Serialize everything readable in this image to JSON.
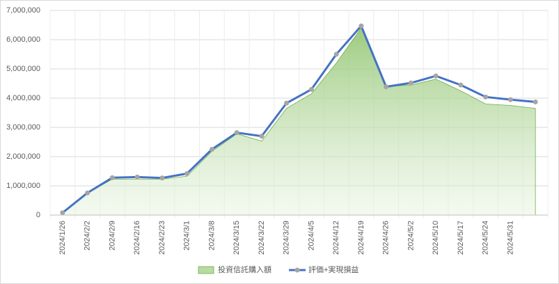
{
  "chart_data": {
    "type": "combo",
    "categories": [
      "2024/1/26",
      "2024/2/2",
      "2024/2/9",
      "2024/2/16",
      "2024/2/23",
      "2024/3/1",
      "2024/3/8",
      "2024/3/15",
      "2024/3/22",
      "2024/3/29",
      "2024/4/5",
      "2024/4/12",
      "2024/4/19",
      "2024/4/26",
      "2024/5/2",
      "2024/5/10",
      "2024/5/17",
      "2024/5/24",
      "2024/5/31",
      null
    ],
    "series": [
      {
        "name": "投資信託購入額",
        "type": "area",
        "color": "#70ad47",
        "values": [
          80000,
          750000,
          1230000,
          1230000,
          1230000,
          1330000,
          2180000,
          2780000,
          2530000,
          3650000,
          4150000,
          5200000,
          6400000,
          4400000,
          4450000,
          4650000,
          4250000,
          3800000,
          3750000,
          3650000
        ]
      },
      {
        "name": "評価+実現損益",
        "type": "line",
        "color": "#4472c4",
        "marker_color": "#a5a5a5",
        "values": [
          80000,
          760000,
          1280000,
          1300000,
          1270000,
          1420000,
          2250000,
          2820000,
          2700000,
          3830000,
          4300000,
          5500000,
          6470000,
          4390000,
          4520000,
          4760000,
          4450000,
          4040000,
          3950000,
          3870000
        ]
      }
    ],
    "ylim": [
      0,
      7000000
    ],
    "yticks": [
      0,
      {
        "value": 1000000,
        "label": "1,000,000"
      },
      {
        "value": 2000000,
        "label": "2,000,000"
      },
      {
        "value": 3000000,
        "label": "3,000,000"
      },
      {
        "value": 4000000,
        "label": "4,000,000"
      },
      {
        "value": 5000000,
        "label": "5,000,000"
      },
      {
        "value": 6000000,
        "label": "6,000,000"
      },
      {
        "value": 7000000,
        "label": "7,000,000"
      }
    ],
    "grid": true,
    "legend": "bottom"
  }
}
